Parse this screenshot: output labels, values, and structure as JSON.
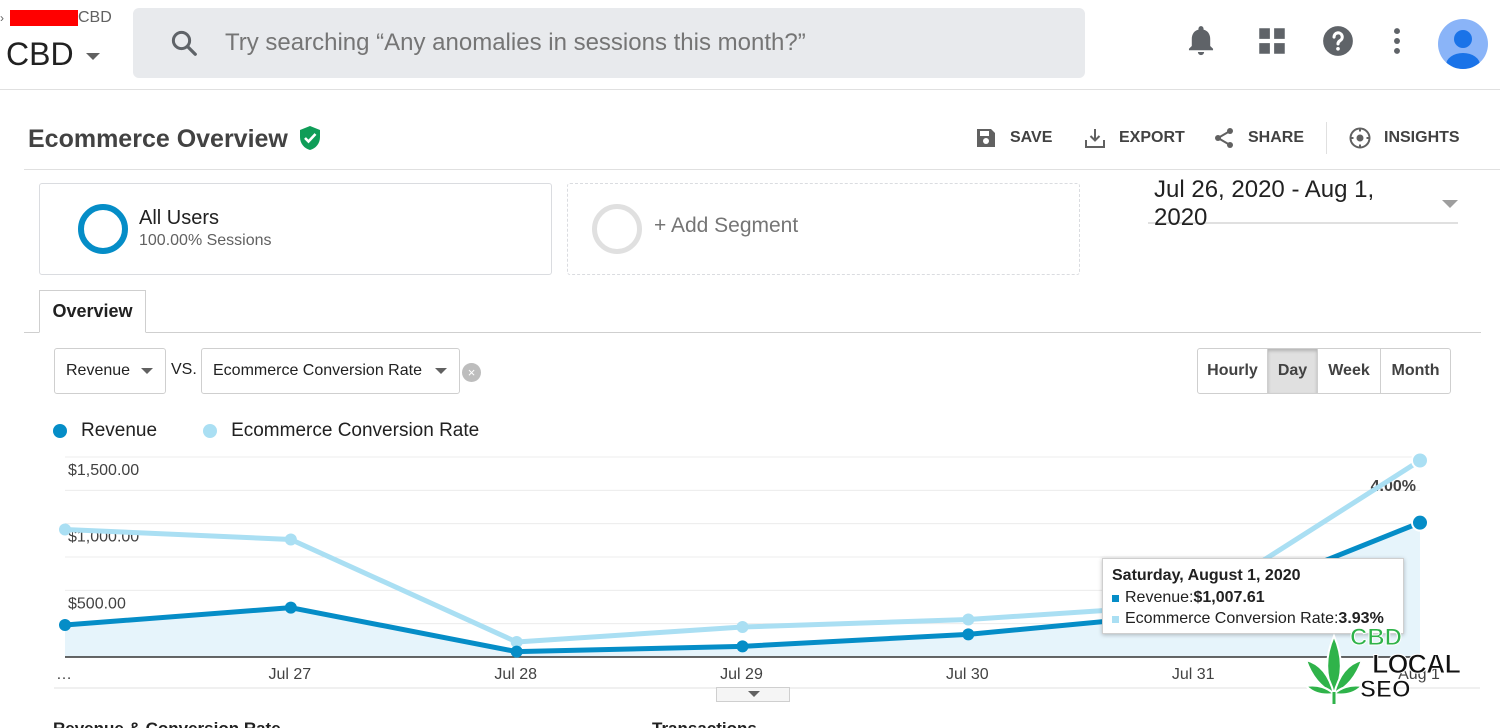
{
  "topbar": {
    "account_suffix": "CBD",
    "property": "CBD",
    "search_placeholder": "Try searching “Any anomalies in sessions this month?”",
    "icons": [
      "bell-icon",
      "apps-grid-icon",
      "help-icon",
      "more-vert-icon",
      "account-avatar-icon"
    ]
  },
  "header": {
    "title": "Ecommerce Overview",
    "actions": {
      "save": "SAVE",
      "export": "EXPORT",
      "share": "SHARE",
      "insights": "INSIGHTS"
    }
  },
  "segments": {
    "primary": {
      "name": "All Users",
      "sub": "100.00% Sessions"
    },
    "add": "+ Add Segment"
  },
  "date_range": "Jul 26, 2020 - Aug 1, 2020",
  "tabs": [
    "Overview"
  ],
  "metric_selectors": {
    "primary": "Revenue",
    "vs": "VS.",
    "secondary": "Ecommerce Conversion Rate",
    "clear": "×"
  },
  "granularity": {
    "options": [
      "Hourly",
      "Day",
      "Week",
      "Month"
    ],
    "selected": "Day"
  },
  "legend": [
    {
      "name": "Revenue",
      "color": "#058dc7"
    },
    {
      "name": "Ecommerce Conversion Rate",
      "color": "#aadff3"
    }
  ],
  "chart_data": {
    "type": "line",
    "categories": [
      "…",
      "Jul 27",
      "Jul 28",
      "Jul 29",
      "Jul 30",
      "Jul 31",
      "Aug 1"
    ],
    "series": [
      {
        "name": "Revenue",
        "values": [
          240,
          370,
          40,
          80,
          170,
          330,
          1007.61
        ]
      },
      {
        "name": "Ecommerce Conversion Rate",
        "values": [
          2.55,
          2.35,
          0.3,
          0.6,
          0.75,
          1.05,
          3.93
        ]
      }
    ],
    "left_axis": {
      "ticks": [
        "$1,500.00",
        "$1,000.00",
        "$500.00"
      ],
      "range": [
        0,
        1500
      ]
    },
    "right_axis": {
      "ticks": [
        "4.00%",
        "%"
      ],
      "range": [
        0,
        4
      ]
    },
    "grid": true
  },
  "tooltip": {
    "title": "Saturday, August 1, 2020",
    "revenue_label": "Revenue: ",
    "revenue_value": "$1,007.61",
    "rate_label": "Ecommerce Conversion Rate: ",
    "rate_value": "3.93%"
  },
  "below_chart": {
    "left": "Revenue & Conversion Rate",
    "right": "Transactions"
  },
  "watermark": {
    "line1": "CBD",
    "line2": "LOCAL",
    "line3": "SEO",
    "colors": {
      "green": "#2fb34a",
      "dark": "#111111"
    }
  },
  "colors": {
    "revenue": "#058dc7",
    "rate": "#aadff3",
    "verified": "#0f9d58"
  }
}
